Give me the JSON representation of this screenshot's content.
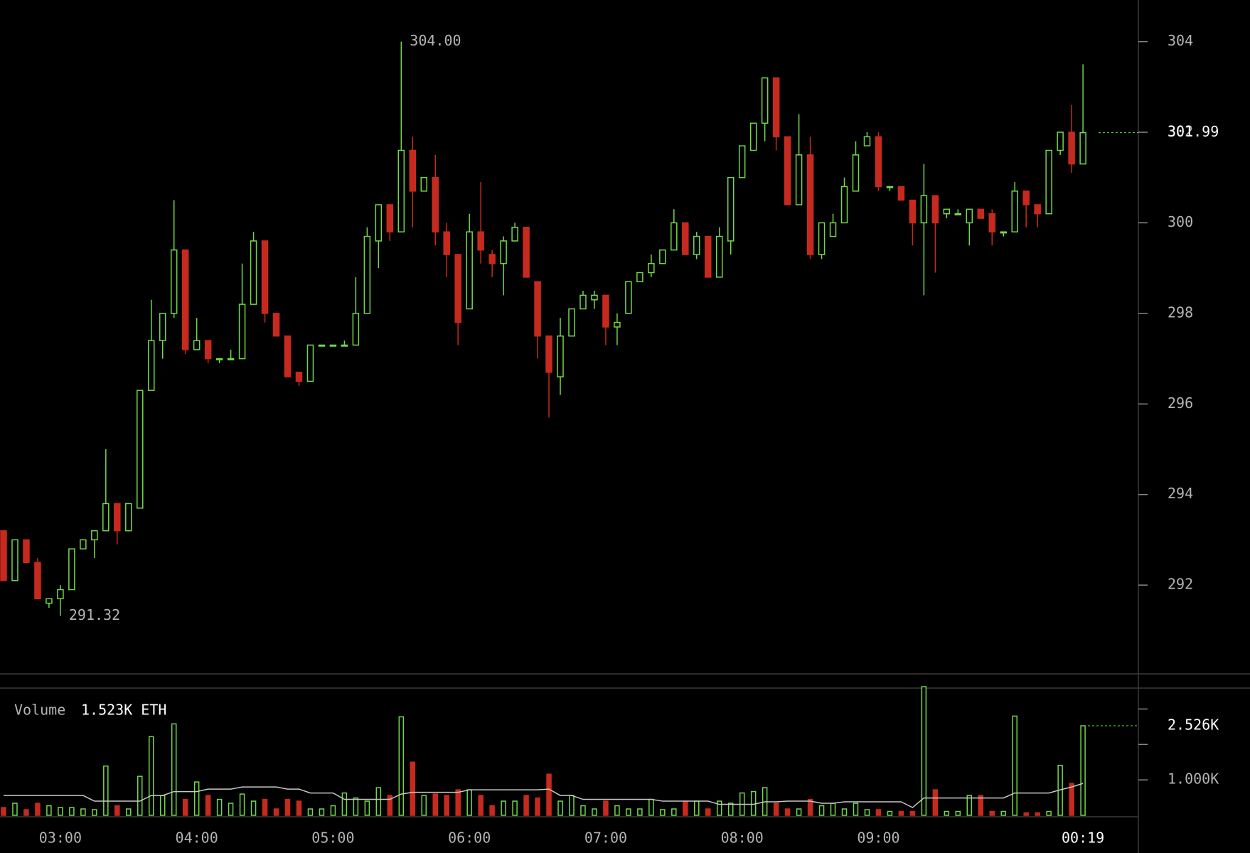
{
  "chart_data": [
    {
      "type": "candlestick",
      "categories": [
        null,
        null,
        null,
        null,
        null,
        "03:00",
        null,
        null,
        null,
        null,
        null,
        null,
        null,
        null,
        null,
        null,
        null,
        "04:00",
        null,
        null,
        null,
        null,
        null,
        null,
        null,
        null,
        null,
        null,
        null,
        "05:00",
        null,
        null,
        null,
        null,
        null,
        null,
        null,
        null,
        null,
        null,
        null,
        "06:00",
        null,
        null,
        null,
        null,
        null,
        null,
        null,
        null,
        null,
        null,
        null,
        "07:00",
        null,
        null,
        null,
        null,
        null,
        null,
        null,
        null,
        null,
        null,
        null,
        "08:00",
        null,
        null,
        null,
        null,
        null,
        null,
        null,
        null,
        null,
        null,
        null,
        "09:00",
        null,
        null,
        null,
        null,
        null,
        null,
        null,
        null,
        null,
        null,
        null,
        null,
        null,
        null,
        null,
        null,
        null,
        "00:19"
      ],
      "open": [
        293.2,
        292.1,
        293.0,
        292.5,
        291.6,
        291.7,
        291.9,
        292.8,
        293.0,
        293.2,
        293.8,
        293.2,
        293.7,
        296.3,
        297.4,
        298.0,
        299.4,
        297.2,
        297.4,
        297.0,
        297.0,
        297.0,
        298.2,
        299.6,
        298.0,
        297.5,
        296.7,
        296.5,
        297.3,
        297.3,
        297.3,
        297.3,
        298.0,
        299.6,
        300.4,
        299.8,
        301.6,
        300.7,
        301.0,
        299.8,
        299.3,
        298.1,
        299.8,
        299.3,
        299.1,
        299.6,
        299.9,
        298.7,
        297.5,
        296.6,
        297.5,
        298.1,
        298.3,
        298.4,
        297.7,
        298.0,
        298.7,
        298.9,
        299.1,
        299.4,
        300.0,
        299.3,
        299.7,
        298.8,
        299.6,
        301.0,
        301.6,
        302.2,
        303.2,
        301.9,
        300.4,
        301.5,
        299.3,
        299.7,
        300.0,
        300.7,
        301.7,
        301.9,
        300.8,
        300.8,
        300.5,
        300.0,
        300.6,
        300.2,
        300.2,
        300.0,
        300.3,
        300.2,
        299.8,
        299.8,
        300.7,
        300.4,
        300.2,
        301.6,
        302.0,
        301.3
      ],
      "high": [
        293.2,
        293.0,
        293.0,
        292.6,
        291.7,
        292.0,
        292.8,
        293.0,
        293.2,
        295.0,
        293.8,
        293.8,
        296.3,
        298.3,
        298.0,
        300.5,
        299.4,
        297.9,
        297.4,
        297.0,
        297.2,
        299.1,
        299.8,
        299.6,
        298.0,
        297.5,
        296.7,
        297.3,
        297.3,
        297.3,
        297.4,
        298.8,
        299.9,
        300.4,
        300.4,
        304.0,
        301.9,
        301.0,
        301.5,
        300.0,
        299.3,
        300.2,
        300.9,
        299.4,
        299.7,
        300.0,
        299.9,
        298.7,
        297.5,
        297.9,
        298.1,
        298.5,
        298.5,
        298.4,
        298.0,
        298.7,
        298.9,
        299.3,
        299.4,
        300.3,
        300.0,
        299.8,
        299.7,
        299.9,
        301.0,
        301.7,
        302.2,
        303.2,
        303.2,
        301.9,
        302.4,
        301.9,
        300.0,
        300.2,
        301.0,
        301.8,
        302.0,
        302.0,
        300.8,
        300.8,
        300.5,
        301.3,
        300.6,
        300.3,
        300.3,
        300.3,
        300.3,
        300.3,
        299.8,
        300.9,
        300.7,
        300.4,
        301.6,
        302.0,
        302.6,
        303.5
      ],
      "low": [
        292.1,
        292.1,
        292.5,
        291.7,
        291.5,
        291.32,
        291.9,
        292.8,
        292.6,
        293.2,
        292.9,
        293.2,
        293.7,
        296.3,
        297.0,
        297.9,
        297.1,
        297.2,
        296.9,
        296.9,
        297.0,
        297.0,
        298.2,
        297.8,
        297.5,
        296.6,
        296.4,
        296.5,
        297.3,
        297.3,
        297.3,
        297.3,
        298.0,
        299.0,
        299.6,
        299.8,
        299.9,
        300.7,
        299.5,
        298.8,
        297.3,
        298.1,
        299.1,
        298.8,
        298.4,
        299.6,
        298.8,
        297.0,
        295.7,
        296.2,
        297.5,
        298.1,
        298.1,
        297.3,
        297.3,
        298.0,
        298.7,
        298.8,
        299.1,
        299.4,
        299.3,
        299.2,
        298.8,
        298.8,
        299.3,
        301.0,
        301.6,
        301.8,
        301.6,
        300.4,
        300.4,
        299.2,
        299.2,
        299.7,
        300.0,
        300.7,
        301.7,
        300.7,
        300.7,
        300.5,
        299.5,
        298.4,
        298.9,
        300.1,
        300.2,
        299.5,
        300.1,
        299.5,
        299.7,
        299.8,
        299.9,
        299.9,
        300.2,
        301.5,
        301.1,
        301.3
      ],
      "close": [
        292.1,
        293.0,
        292.5,
        291.7,
        291.7,
        291.9,
        292.8,
        293.0,
        293.2,
        293.8,
        293.2,
        293.8,
        296.3,
        297.4,
        298.0,
        299.4,
        297.2,
        297.4,
        297.0,
        297.0,
        297.0,
        298.2,
        299.6,
        298.0,
        297.5,
        296.6,
        296.5,
        297.3,
        297.3,
        297.3,
        297.3,
        298.0,
        299.7,
        300.4,
        299.8,
        301.6,
        300.7,
        301.0,
        299.8,
        299.3,
        297.8,
        299.8,
        299.4,
        299.1,
        299.6,
        299.9,
        298.8,
        297.5,
        296.7,
        297.5,
        298.1,
        298.4,
        298.4,
        297.7,
        297.8,
        298.7,
        298.9,
        299.1,
        299.4,
        300.0,
        299.3,
        299.7,
        298.8,
        299.7,
        301.0,
        301.7,
        302.2,
        303.2,
        301.9,
        300.4,
        301.5,
        299.3,
        300.0,
        300.0,
        300.8,
        301.5,
        301.9,
        300.8,
        300.8,
        300.5,
        300.0,
        300.6,
        300.0,
        300.3,
        300.2,
        300.3,
        300.1,
        299.8,
        299.8,
        300.7,
        300.4,
        300.2,
        301.6,
        302.0,
        301.3,
        301.99
      ],
      "up_color": "#72d84a",
      "down_color": "#c62a1e",
      "ylim": [
        290.04,
        304.92
      ],
      "yticks": [
        292,
        294,
        296,
        298,
        300,
        302,
        304
      ],
      "max_label": "304.00",
      "min_label": "291.32",
      "last": {
        "value": 301.99,
        "label": "301.99"
      }
    },
    {
      "type": "volume",
      "title": "Volume",
      "legend_value": "1.523K ETH",
      "values": [
        220,
        340,
        160,
        340,
        270,
        220,
        220,
        180,
        160,
        1390,
        270,
        180,
        1100,
        2220,
        560,
        2580,
        450,
        940,
        560,
        450,
        340,
        600,
        400,
        450,
        180,
        450,
        400,
        180,
        180,
        270,
        630,
        490,
        400,
        780,
        560,
        2780,
        1500,
        560,
        600,
        560,
        720,
        720,
        560,
        270,
        400,
        400,
        560,
        490,
        1160,
        400,
        560,
        270,
        180,
        400,
        270,
        180,
        180,
        450,
        160,
        180,
        400,
        400,
        180,
        400,
        340,
        630,
        670,
        780,
        340,
        180,
        180,
        450,
        270,
        340,
        180,
        340,
        160,
        160,
        110,
        110,
        110,
        3630,
        720,
        110,
        110,
        560,
        560,
        110,
        110,
        2800,
        70,
        70,
        110,
        1410,
        900,
        2526
      ],
      "ma": [
        560,
        560,
        560,
        560,
        560,
        560,
        560,
        560,
        400,
        400,
        400,
        400,
        400,
        560,
        560,
        670,
        670,
        670,
        740,
        740,
        740,
        800,
        800,
        800,
        800,
        740,
        740,
        630,
        630,
        630,
        450,
        450,
        450,
        450,
        450,
        600,
        650,
        650,
        650,
        650,
        650,
        720,
        720,
        720,
        720,
        720,
        720,
        720,
        740,
        560,
        560,
        450,
        450,
        450,
        450,
        450,
        450,
        450,
        400,
        400,
        400,
        400,
        400,
        310,
        310,
        310,
        310,
        380,
        380,
        400,
        400,
        400,
        340,
        340,
        380,
        380,
        380,
        380,
        380,
        380,
        220,
        490,
        490,
        490,
        490,
        490,
        490,
        490,
        490,
        630,
        630,
        630,
        630,
        720,
        800,
        900
      ],
      "ma_color": "#c8c8c8",
      "ylim": [
        0,
        3650
      ],
      "yticks": [
        {
          "value": 1000,
          "label": "1.000K"
        }
      ],
      "minor_ticks": [
        2000,
        3000
      ],
      "last": {
        "value": 2526,
        "label": "2.526K"
      }
    }
  ]
}
